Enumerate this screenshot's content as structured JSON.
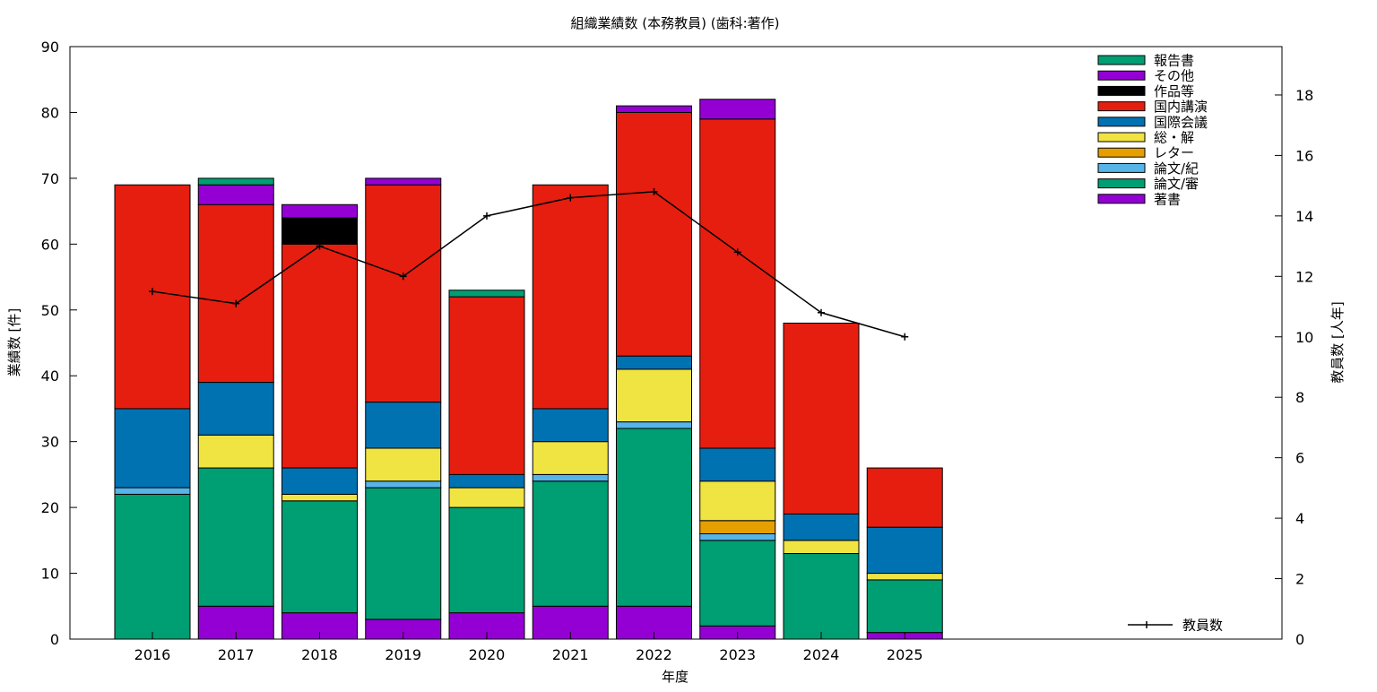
{
  "chart_data": {
    "type": "bar",
    "stacked": true,
    "title": "組織業績数 (本務教員) (歯科:著作)",
    "xlabel": "年度",
    "ylabel": "業績数 [件]",
    "y2label": "教員数 [人年]",
    "ylim": [
      0,
      90
    ],
    "y2lim": [
      0,
      19.6
    ],
    "yticks": [
      0,
      10,
      20,
      30,
      40,
      50,
      60,
      70,
      80,
      90
    ],
    "y2ticks": [
      0,
      2,
      4,
      6,
      8,
      10,
      12,
      14,
      16,
      18
    ],
    "grid": false,
    "legend_position": "top-right",
    "categories": [
      "2016",
      "2017",
      "2018",
      "2019",
      "2020",
      "2021",
      "2022",
      "2023",
      "2024",
      "2025"
    ],
    "series": [
      {
        "name": "著書",
        "color": "#9400d3",
        "values": [
          0,
          5,
          4,
          3,
          4,
          5,
          5,
          2,
          0,
          1
        ]
      },
      {
        "name": "論文/審",
        "color": "#009e73",
        "values": [
          22,
          21,
          17,
          20,
          16,
          19,
          27,
          13,
          13,
          8
        ]
      },
      {
        "name": "論文/紀",
        "color": "#56b4e9",
        "values": [
          1,
          0,
          0,
          1,
          0,
          1,
          1,
          1,
          0,
          0
        ]
      },
      {
        "name": "レター",
        "color": "#e69f00",
        "values": [
          0,
          0,
          0,
          0,
          0,
          0,
          0,
          2,
          0,
          0
        ]
      },
      {
        "name": "総・解",
        "color": "#f0e442",
        "values": [
          0,
          5,
          1,
          5,
          3,
          5,
          8,
          6,
          2,
          1
        ]
      },
      {
        "name": "国際会議",
        "color": "#0072b2",
        "values": [
          12,
          8,
          4,
          7,
          2,
          5,
          2,
          5,
          4,
          7
        ]
      },
      {
        "name": "国内講演",
        "color": "#e51e10",
        "values": [
          34,
          27,
          34,
          33,
          27,
          34,
          37,
          50,
          29,
          9
        ]
      },
      {
        "name": "作品等",
        "color": "#000000",
        "values": [
          0,
          0,
          4,
          0,
          0,
          0,
          0,
          0,
          0,
          0
        ]
      },
      {
        "name": "その他",
        "color": "#9400d3",
        "values": [
          0,
          3,
          2,
          1,
          0,
          0,
          1,
          3,
          0,
          0
        ]
      },
      {
        "name": "報告書",
        "color": "#009e73",
        "values": [
          0,
          1,
          0,
          0,
          1,
          0,
          0,
          0,
          0,
          0
        ]
      }
    ],
    "line_series": {
      "name": "教員数",
      "color": "#000000",
      "axis": "y2",
      "x": [
        "2016",
        "2017",
        "2018",
        "2019",
        "2020",
        "2021",
        "2022",
        "2023",
        "2024",
        "2025"
      ],
      "values": [
        11.5,
        11.1,
        13.0,
        12.0,
        14.0,
        14.6,
        14.8,
        12.8,
        10.8,
        10.0
      ]
    }
  }
}
